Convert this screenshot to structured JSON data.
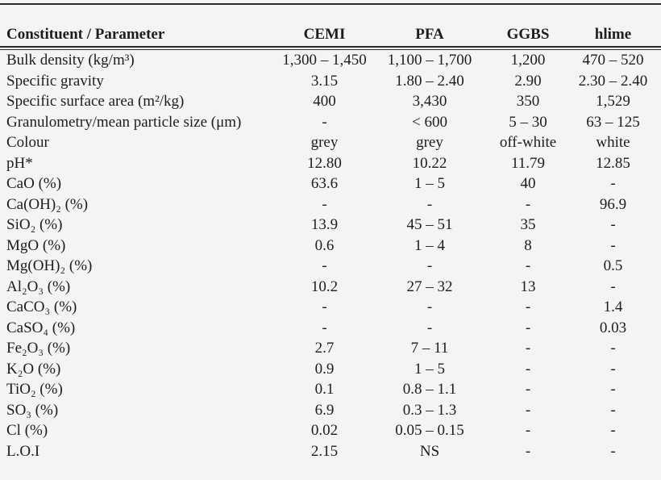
{
  "page": {
    "background_color": "#f5f4f2",
    "text_color": "#1e1d1b",
    "rule_color": "#2e2d2b"
  },
  "table": {
    "columns": [
      "Constituent / Parameter",
      "CEMI",
      "PFA",
      "GGBS",
      "hlime"
    ],
    "rows": [
      {
        "label": "Bulk density (kg/m³)",
        "values": [
          "1,300 – 1,450",
          "1,100 – 1,700",
          "1,200",
          "470 – 520"
        ]
      },
      {
        "label": "Specific gravity",
        "values": [
          "3.15",
          "1.80 – 2.40",
          "2.90",
          "2.30 – 2.40"
        ]
      },
      {
        "label": "Specific surface area (m²/kg)",
        "values": [
          "400",
          "3,430",
          "350",
          "1,529"
        ]
      },
      {
        "label": "Granulometry/mean particle size (μm)",
        "values": [
          "-",
          "< 600",
          "5 – 30",
          "63 – 125"
        ]
      },
      {
        "label": "Colour",
        "values": [
          "grey",
          "grey",
          "off-white",
          "white"
        ]
      },
      {
        "label": "pH*",
        "values": [
          "12.80",
          "10.22",
          "11.79",
          "12.85"
        ]
      },
      {
        "label": "CaO (%)",
        "values": [
          "63.6",
          "1 – 5",
          "40",
          "-"
        ]
      },
      {
        "label": "Ca(OH)₂ (%)",
        "values": [
          "-",
          "-",
          "-",
          "96.9"
        ]
      },
      {
        "label": "SiO₂ (%)",
        "values": [
          "13.9",
          "45 – 51",
          "35",
          "-"
        ]
      },
      {
        "label": "MgO (%)",
        "values": [
          "0.6",
          "1 – 4",
          "8",
          "-"
        ]
      },
      {
        "label": "Mg(OH)₂ (%)",
        "values": [
          "-",
          "-",
          "-",
          "0.5"
        ]
      },
      {
        "label": "Al₂O₃ (%)",
        "values": [
          "10.2",
          "27 – 32",
          "13",
          "-"
        ]
      },
      {
        "label": "CaCO₃ (%)",
        "values": [
          "-",
          "-",
          "-",
          "1.4"
        ]
      },
      {
        "label": "CaSO₄ (%)",
        "values": [
          "-",
          "-",
          "-",
          "0.03"
        ]
      },
      {
        "label": "Fe₂O₃ (%)",
        "values": [
          "2.7",
          "7 – 11",
          "-",
          "-"
        ]
      },
      {
        "label": "K₂O (%)",
        "values": [
          "0.9",
          "1 – 5",
          "-",
          "-"
        ]
      },
      {
        "label": "TiO₂ (%)",
        "values": [
          "0.1",
          "0.8 – 1.1",
          "-",
          "-"
        ]
      },
      {
        "label": "SO₃ (%)",
        "values": [
          "6.9",
          "0.3 – 1.3",
          "-",
          "-"
        ]
      },
      {
        "label": "Cl (%)",
        "values": [
          "0.02",
          "0.05 – 0.15",
          "-",
          "-"
        ]
      },
      {
        "label": "L.O.I",
        "values": [
          "2.15",
          "NS",
          "-",
          "-"
        ]
      }
    ]
  }
}
